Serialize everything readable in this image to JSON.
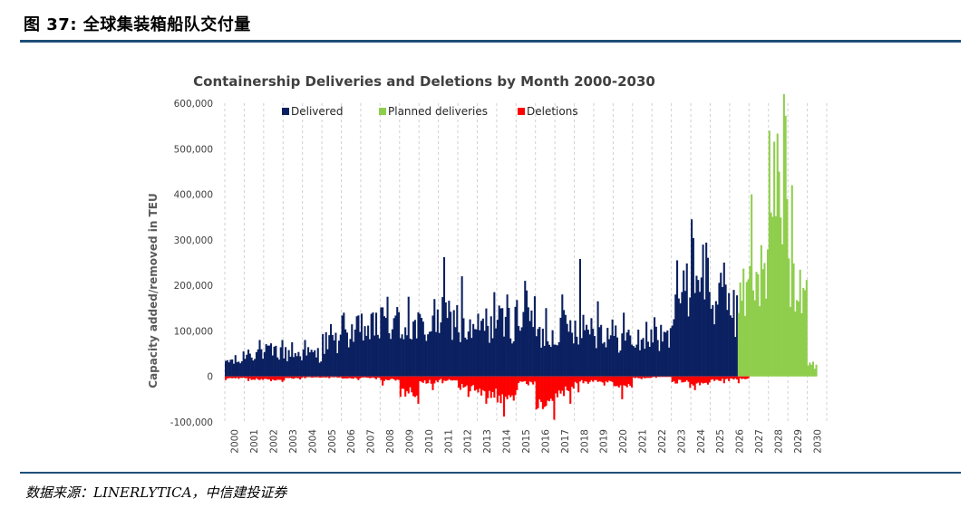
{
  "figure": {
    "title": "图 37: 全球集装箱船队交付量",
    "source": "数据来源：LINERLYTICA，中信建投证券"
  },
  "colors": {
    "delivered": "#0b2060",
    "planned": "#8fce4c",
    "deletions": "#ff0000",
    "gridline": "#d0d0d0",
    "rule": "#1f4e79"
  },
  "chart_data": {
    "type": "bar",
    "title": "Containership Deliveries and Deletions by Month 2000-2030",
    "ylabel": "Capacity added/removed in TEU",
    "xlabel": "",
    "ylim": [
      -100000,
      600000
    ],
    "yticks": [
      -100000,
      0,
      100000,
      200000,
      300000,
      400000,
      500000,
      600000
    ],
    "ytick_labels": [
      "-100,000",
      "0",
      "100,000",
      "200,000",
      "300,000",
      "400,000",
      "500,000",
      "600,000"
    ],
    "xtick_labels": [
      "2000",
      "2001",
      "2002",
      "2003",
      "2004",
      "2005",
      "2006",
      "2007",
      "2008",
      "2009",
      "2010",
      "2011",
      "2012",
      "2013",
      "2014",
      "2015",
      "2016",
      "2017",
      "2018",
      "2019",
      "2020",
      "2021",
      "2022",
      "2023",
      "2024",
      "2025",
      "2026",
      "2027",
      "2028",
      "2029",
      "2030"
    ],
    "grid": "vertical dashed",
    "legend_position": "top",
    "series": [
      {
        "name": "Delivered",
        "color_key": "delivered",
        "annual_profile": [
          {
            "year": 2000,
            "typical": 35000,
            "peak": 55000
          },
          {
            "year": 2001,
            "typical": 55000,
            "peak": 80000
          },
          {
            "year": 2002,
            "typical": 55000,
            "peak": 80000
          },
          {
            "year": 2003,
            "typical": 50000,
            "peak": 75000
          },
          {
            "year": 2004,
            "typical": 50000,
            "peak": 80000
          },
          {
            "year": 2005,
            "typical": 75000,
            "peak": 115000
          },
          {
            "year": 2006,
            "typical": 100000,
            "peak": 140000
          },
          {
            "year": 2007,
            "typical": 105000,
            "peak": 140000
          },
          {
            "year": 2008,
            "typical": 120000,
            "peak": 175000
          },
          {
            "year": 2009,
            "typical": 110000,
            "peak": 175000
          },
          {
            "year": 2010,
            "typical": 110000,
            "peak": 170000
          },
          {
            "year": 2011,
            "typical": 130000,
            "peak": 262000
          },
          {
            "year": 2012,
            "typical": 100000,
            "peak": 220000
          },
          {
            "year": 2013,
            "typical": 115000,
            "peak": 185000
          },
          {
            "year": 2014,
            "typical": 120000,
            "peak": 180000
          },
          {
            "year": 2015,
            "typical": 140000,
            "peak": 210000
          },
          {
            "year": 2016,
            "typical": 90000,
            "peak": 150000
          },
          {
            "year": 2017,
            "typical": 110000,
            "peak": 180000
          },
          {
            "year": 2018,
            "typical": 115000,
            "peak": 258000
          },
          {
            "year": 2019,
            "typical": 100000,
            "peak": 165000
          },
          {
            "year": 2020,
            "typical": 85000,
            "peak": 140000
          },
          {
            "year": 2021,
            "typical": 80000,
            "peak": 120000
          },
          {
            "year": 2022,
            "typical": 85000,
            "peak": 130000
          },
          {
            "year": 2023,
            "typical": 185000,
            "peak": 255000
          },
          {
            "year": 2024,
            "typical": 240000,
            "peak": 345000
          },
          {
            "year": 2025,
            "typical": 170000,
            "peak": 250000
          },
          {
            "year": 2026,
            "typical": 140000,
            "peak": 190000
          }
        ]
      },
      {
        "name": "Planned deliveries",
        "color_key": "planned",
        "annual_profile": [
          {
            "year": 2026,
            "typical": 180000,
            "peak": 245000
          },
          {
            "year": 2027,
            "typical": 230000,
            "peak": 400000
          },
          {
            "year": 2028,
            "typical": 430000,
            "peak": 620000
          },
          {
            "year": 2029,
            "typical": 230000,
            "peak": 420000
          },
          {
            "year": 2030,
            "typical": 25000,
            "peak": 55000
          }
        ]
      },
      {
        "name": "Deletions",
        "color_key": "deletions",
        "annual_profile": [
          {
            "year": 2000,
            "typical": -4000,
            "peak": -8000
          },
          {
            "year": 2001,
            "typical": -6000,
            "peak": -10000
          },
          {
            "year": 2002,
            "typical": -8000,
            "peak": -12000
          },
          {
            "year": 2003,
            "typical": -5000,
            "peak": -9000
          },
          {
            "year": 2004,
            "typical": -2000,
            "peak": -4000
          },
          {
            "year": 2005,
            "typical": -2000,
            "peak": -4000
          },
          {
            "year": 2006,
            "typical": -4000,
            "peak": -8000
          },
          {
            "year": 2007,
            "typical": -3000,
            "peak": -6000
          },
          {
            "year": 2008,
            "typical": -8000,
            "peak": -20000
          },
          {
            "year": 2009,
            "typical": -35000,
            "peak": -60000
          },
          {
            "year": 2010,
            "typical": -12000,
            "peak": -30000
          },
          {
            "year": 2011,
            "typical": -8000,
            "peak": -15000
          },
          {
            "year": 2012,
            "typical": -25000,
            "peak": -45000
          },
          {
            "year": 2013,
            "typical": -40000,
            "peak": -60000
          },
          {
            "year": 2014,
            "typical": -45000,
            "peak": -88000
          },
          {
            "year": 2015,
            "typical": -15000,
            "peak": -30000
          },
          {
            "year": 2016,
            "typical": -55000,
            "peak": -95000
          },
          {
            "year": 2017,
            "typical": -35000,
            "peak": -60000
          },
          {
            "year": 2018,
            "typical": -12000,
            "peak": -35000
          },
          {
            "year": 2019,
            "typical": -10000,
            "peak": -20000
          },
          {
            "year": 2020,
            "typical": -18000,
            "peak": -50000
          },
          {
            "year": 2021,
            "typical": -3000,
            "peak": -6000
          },
          {
            "year": 2022,
            "typical": -1000,
            "peak": -3000
          },
          {
            "year": 2023,
            "typical": -12000,
            "peak": -25000
          },
          {
            "year": 2024,
            "typical": -15000,
            "peak": -30000
          },
          {
            "year": 2025,
            "typical": -8000,
            "peak": -15000
          },
          {
            "year": 2026,
            "typical": -5000,
            "peak": -15000
          }
        ]
      }
    ]
  }
}
